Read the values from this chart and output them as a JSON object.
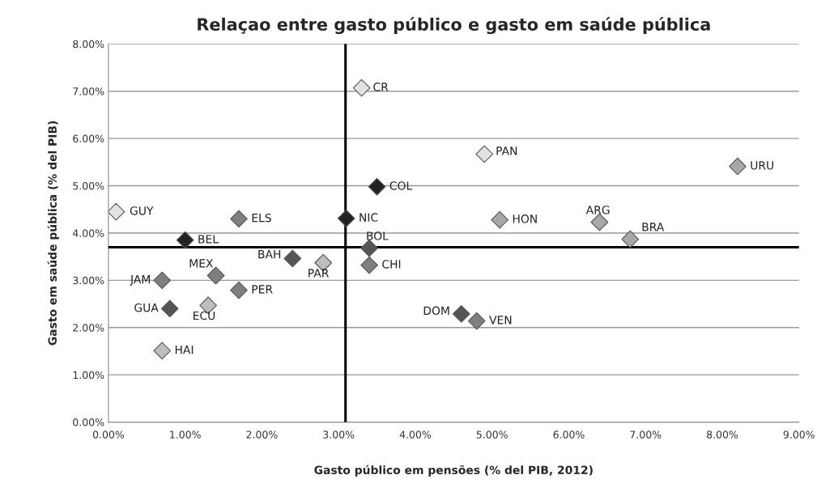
{
  "chart_data": {
    "type": "scatter",
    "title": "Relaçao entre gasto público e gasto em saúde pública",
    "xlabel": "Gasto público em pensões (% del PIB, 2012)",
    "ylabel": "Gasto em saúde pública (% del PIB)",
    "series": [
      {
        "marker": "diamond",
        "x": [
          3.3,
          3.5,
          0.1,
          1.7,
          3.1,
          1.0,
          3.4,
          2.4,
          2.8,
          3.4,
          0.7,
          1.4,
          1.7,
          0.8,
          1.3,
          0.7,
          4.6,
          4.8,
          4.9,
          8.2,
          5.1,
          6.4,
          6.8
        ],
        "values": [
          7.07,
          4.98,
          4.45,
          4.3,
          4.31,
          3.85,
          3.68,
          3.46,
          3.37,
          3.32,
          3.0,
          3.1,
          2.79,
          2.4,
          2.47,
          1.51,
          2.29,
          2.14,
          5.67,
          5.41,
          4.28,
          4.23,
          3.87
        ],
        "colors": [
          "#e2e2e2",
          "#222222",
          "#e2e2e2",
          "#7f7f7f",
          "#222222",
          "#222222",
          "#555555",
          "#555555",
          "#bdbdbd",
          "#7f7f7f",
          "#7f7f7f",
          "#7f7f7f",
          "#7f7f7f",
          "#555555",
          "#bdbdbd",
          "#bdbdbd",
          "#555555",
          "#7f7f7f",
          "#e2e2e2",
          "#a8a8a8",
          "#a8a8a8",
          "#a8a8a8",
          "#a8a8a8"
        ]
      }
    ],
    "annotations": [
      {
        "text": "CR",
        "x": 3.3,
        "y": 7.07
      },
      {
        "text": "COL",
        "x": 3.5,
        "y": 4.98
      },
      {
        "text": "GUY",
        "x": 0.1,
        "y": 4.45
      },
      {
        "text": "ELS",
        "x": 1.7,
        "y": 4.3
      },
      {
        "text": "NIC",
        "x": 3.1,
        "y": 4.31
      },
      {
        "text": "BEL",
        "x": 1.0,
        "y": 3.85
      },
      {
        "text": "BOL",
        "x": 3.4,
        "y": 3.68
      },
      {
        "text": "BAH",
        "x": 2.4,
        "y": 3.46
      },
      {
        "text": "PAR",
        "x": 2.8,
        "y": 3.37
      },
      {
        "text": "CHI",
        "x": 3.4,
        "y": 3.32
      },
      {
        "text": "JAM",
        "x": 0.7,
        "y": 3.0
      },
      {
        "text": "MEX",
        "x": 1.4,
        "y": 3.1
      },
      {
        "text": "PER",
        "x": 1.7,
        "y": 2.79
      },
      {
        "text": "GUA",
        "x": 0.8,
        "y": 2.4
      },
      {
        "text": "ECU",
        "x": 1.3,
        "y": 2.47
      },
      {
        "text": "HAI",
        "x": 0.7,
        "y": 1.51
      },
      {
        "text": "DOM",
        "x": 4.6,
        "y": 2.29
      },
      {
        "text": "VEN",
        "x": 4.8,
        "y": 2.14
      },
      {
        "text": "PAN",
        "x": 4.9,
        "y": 5.67
      },
      {
        "text": "URU",
        "x": 8.2,
        "y": 5.41
      },
      {
        "text": "HON",
        "x": 5.1,
        "y": 4.28
      },
      {
        "text": "ARG",
        "x": 6.4,
        "y": 4.23
      },
      {
        "text": "BRA",
        "x": 6.8,
        "y": 3.87
      }
    ],
    "ref_lines": [
      {
        "axis": "x",
        "value": 3.09,
        "color": "#000000"
      },
      {
        "axis": "y",
        "value": 3.7,
        "color": "#000000"
      }
    ],
    "xlim": [
      0,
      9
    ],
    "ylim": [
      0,
      8
    ],
    "xticks": [
      {
        "value": 0,
        "label": "0.00%"
      },
      {
        "value": 1,
        "label": "1.00%"
      },
      {
        "value": 2,
        "label": "2.00%"
      },
      {
        "value": 3,
        "label": "3.00%"
      },
      {
        "value": 4,
        "label": "4.00%"
      },
      {
        "value": 5,
        "label": "5.00%"
      },
      {
        "value": 6,
        "label": "6.00%"
      },
      {
        "value": 7,
        "label": "7.00%"
      },
      {
        "value": 8,
        "label": "8.00%"
      },
      {
        "value": 9,
        "label": "9.00%"
      }
    ],
    "yticks": [
      {
        "value": 0,
        "label": "0.00%"
      },
      {
        "value": 1,
        "label": "1.00%"
      },
      {
        "value": 2,
        "label": "2.00%"
      },
      {
        "value": 3,
        "label": "3.00%"
      },
      {
        "value": 4,
        "label": "4.00%"
      },
      {
        "value": 5,
        "label": "5.00%"
      },
      {
        "value": 6,
        "label": "6.00%"
      },
      {
        "value": 7,
        "label": "7.00%"
      },
      {
        "value": 8,
        "label": "8.00%"
      }
    ],
    "grid": "y",
    "legend": false
  }
}
